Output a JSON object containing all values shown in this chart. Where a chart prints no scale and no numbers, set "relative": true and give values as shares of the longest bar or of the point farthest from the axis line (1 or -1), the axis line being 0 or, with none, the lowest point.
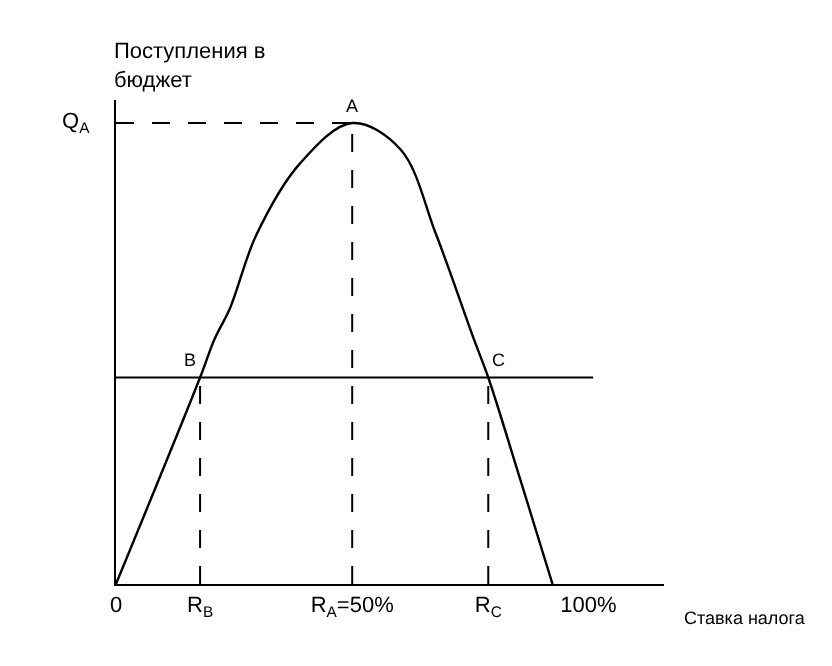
{
  "chart_data": {
    "type": "line",
    "relative": true,
    "xlabel": "Ставка налога",
    "ylabel": "Поступления в бюджет",
    "x": [
      0,
      17.8,
      20.8,
      24.2,
      29.7,
      39.0,
      50,
      60.2,
      67.8,
      75.8,
      78.8,
      85.6,
      92.4
    ],
    "series": [
      {
        "color": "#000000",
        "values": [
          0,
          0.448,
          0.53,
          0.6,
          0.757,
          0.913,
          1,
          0.943,
          0.757,
          0.53,
          0.448,
          0.226,
          0
        ]
      }
    ],
    "xlim": [
      0,
      116
    ],
    "xticks": [
      0,
      {
        "value": 17.8,
        "label": "R$_{B}$"
      },
      {
        "value": 50,
        "label": "R$_{A}$=50%"
      },
      {
        "value": 78.8,
        "label": "R$_{C}$"
      },
      {
        "value": 100,
        "label": "100%"
      }
    ],
    "ref_lines": [
      {
        "axis": "y",
        "value": 1,
        "label": "Q$_{A}$",
        "line_style": "dashed"
      },
      {
        "axis": "y",
        "value": 0.448,
        "line_style": "solid"
      },
      {
        "axis": "x",
        "value": 17.8,
        "line_style": "dashed"
      },
      {
        "axis": "x",
        "value": 50,
        "line_style": "dashed"
      },
      {
        "axis": "x",
        "value": 78.8,
        "line_style": "dashed"
      }
    ],
    "annotations": [
      {
        "text": "A",
        "x": 50,
        "y": 1
      },
      {
        "text": "B",
        "x": 17.8,
        "y": 0.448
      },
      {
        "text": "C",
        "x": 78.8,
        "y": 0.448
      }
    ],
    "marker": "none",
    "line_style": "solid"
  }
}
